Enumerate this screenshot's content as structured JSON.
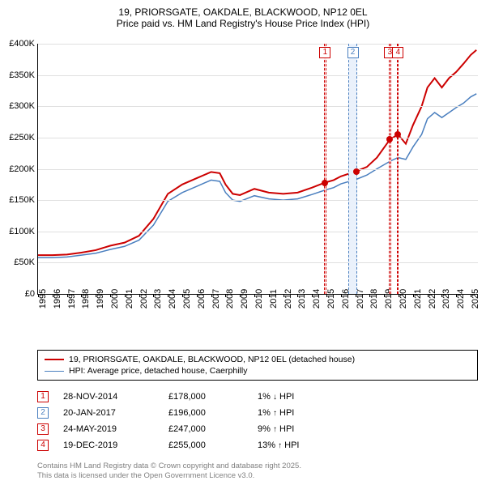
{
  "title": {
    "line1": "19, PRIORSGATE, OAKDALE, BLACKWOOD, NP12 0EL",
    "line2": "Price paid vs. HM Land Registry's House Price Index (HPI)"
  },
  "chart": {
    "type": "line",
    "background_color": "#ffffff",
    "grid_color": "#e0e0e0",
    "xlim": [
      1995,
      2025.5
    ],
    "ylim": [
      0,
      400000
    ],
    "yticks": [
      0,
      50000,
      100000,
      150000,
      200000,
      250000,
      300000,
      350000,
      400000
    ],
    "ytick_labels": [
      "£0",
      "£50K",
      "£100K",
      "£150K",
      "£200K",
      "£250K",
      "£300K",
      "£350K",
      "£400K"
    ],
    "xticks": [
      1995,
      1996,
      1997,
      1998,
      1999,
      2000,
      2001,
      2002,
      2003,
      2004,
      2005,
      2006,
      2007,
      2008,
      2009,
      2010,
      2011,
      2012,
      2013,
      2014,
      2015,
      2016,
      2017,
      2018,
      2019,
      2020,
      2021,
      2022,
      2023,
      2024,
      2025
    ],
    "axis_fontsize": 11,
    "series": [
      {
        "name": "property",
        "color": "#cc0000",
        "width": 2,
        "points": [
          [
            1995,
            62000
          ],
          [
            1996,
            62000
          ],
          [
            1997,
            63000
          ],
          [
            1998,
            66000
          ],
          [
            1999,
            70000
          ],
          [
            2000,
            77000
          ],
          [
            2001,
            82000
          ],
          [
            2002,
            93000
          ],
          [
            2003,
            120000
          ],
          [
            2004,
            160000
          ],
          [
            2005,
            175000
          ],
          [
            2006,
            185000
          ],
          [
            2007,
            195000
          ],
          [
            2007.6,
            193000
          ],
          [
            2008,
            175000
          ],
          [
            2008.5,
            160000
          ],
          [
            2009,
            158000
          ],
          [
            2010,
            168000
          ],
          [
            2011,
            162000
          ],
          [
            2012,
            160000
          ],
          [
            2013,
            162000
          ],
          [
            2014,
            170000
          ],
          [
            2014.9,
            178000
          ],
          [
            2015.5,
            182000
          ],
          [
            2016,
            188000
          ],
          [
            2017.05,
            196000
          ],
          [
            2017.8,
            203000
          ],
          [
            2018.5,
            218000
          ],
          [
            2019.4,
            247000
          ],
          [
            2019.96,
            255000
          ],
          [
            2020.5,
            240000
          ],
          [
            2021,
            270000
          ],
          [
            2021.6,
            300000
          ],
          [
            2022,
            330000
          ],
          [
            2022.5,
            345000
          ],
          [
            2023,
            330000
          ],
          [
            2023.5,
            345000
          ],
          [
            2024,
            355000
          ],
          [
            2024.5,
            368000
          ],
          [
            2025,
            382000
          ],
          [
            2025.4,
            390000
          ]
        ]
      },
      {
        "name": "hpi",
        "color": "#4a7fbf",
        "width": 1.5,
        "points": [
          [
            1995,
            58000
          ],
          [
            1996,
            58000
          ],
          [
            1997,
            59000
          ],
          [
            1998,
            62000
          ],
          [
            1999,
            65000
          ],
          [
            2000,
            71000
          ],
          [
            2001,
            76000
          ],
          [
            2002,
            86000
          ],
          [
            2003,
            110000
          ],
          [
            2004,
            148000
          ],
          [
            2005,
            162000
          ],
          [
            2006,
            172000
          ],
          [
            2007,
            182000
          ],
          [
            2007.6,
            180000
          ],
          [
            2008,
            162000
          ],
          [
            2008.5,
            150000
          ],
          [
            2009,
            148000
          ],
          [
            2010,
            157000
          ],
          [
            2011,
            152000
          ],
          [
            2012,
            150000
          ],
          [
            2013,
            152000
          ],
          [
            2014,
            159000
          ],
          [
            2014.9,
            166000
          ],
          [
            2015.5,
            170000
          ],
          [
            2016,
            176000
          ],
          [
            2017.05,
            183000
          ],
          [
            2017.8,
            190000
          ],
          [
            2018.5,
            200000
          ],
          [
            2019.4,
            212000
          ],
          [
            2019.96,
            218000
          ],
          [
            2020.5,
            215000
          ],
          [
            2021,
            235000
          ],
          [
            2021.6,
            255000
          ],
          [
            2022,
            280000
          ],
          [
            2022.5,
            290000
          ],
          [
            2023,
            282000
          ],
          [
            2023.5,
            290000
          ],
          [
            2024,
            298000
          ],
          [
            2024.5,
            305000
          ],
          [
            2025,
            315000
          ],
          [
            2025.4,
            320000
          ]
        ]
      }
    ],
    "sale_markers": [
      {
        "x": 2014.91,
        "y": 178000,
        "color": "#cc0000"
      },
      {
        "x": 2017.05,
        "y": 196000,
        "color": "#cc0000"
      },
      {
        "x": 2019.4,
        "y": 247000,
        "color": "#cc0000"
      },
      {
        "x": 2019.96,
        "y": 255000,
        "color": "#cc0000"
      }
    ],
    "bands": [
      {
        "label": "1",
        "x_start": 2014.85,
        "x_end": 2014.97,
        "fill": "#fdeaea",
        "border_color": "#cc0000"
      },
      {
        "label": "2",
        "x_start": 2016.5,
        "x_end": 2017.15,
        "fill": "#eaf1fb",
        "border_color": "#4a7fbf"
      },
      {
        "label": "3",
        "x_start": 2019.33,
        "x_end": 2019.47,
        "fill": "#fdeaea",
        "border_color": "#cc0000"
      },
      {
        "label": "4",
        "x_start": 2019.9,
        "x_end": 2020.02,
        "fill": "#fdeaea",
        "border_color": "#cc0000"
      }
    ]
  },
  "legend": {
    "items": [
      {
        "color": "#cc0000",
        "width": 2,
        "label": "19, PRIORSGATE, OAKDALE, BLACKWOOD, NP12 0EL (detached house)"
      },
      {
        "color": "#4a7fbf",
        "width": 1.5,
        "label": "HPI: Average price, detached house, Caerphilly"
      }
    ]
  },
  "sales": [
    {
      "n": "1",
      "color": "#cc0000",
      "date": "28-NOV-2014",
      "price": "£178,000",
      "diff": "1%",
      "arrow": "↓",
      "suffix": "HPI"
    },
    {
      "n": "2",
      "color": "#4a7fbf",
      "date": "20-JAN-2017",
      "price": "£196,000",
      "diff": "1%",
      "arrow": "↑",
      "suffix": "HPI"
    },
    {
      "n": "3",
      "color": "#cc0000",
      "date": "24-MAY-2019",
      "price": "£247,000",
      "diff": "9%",
      "arrow": "↑",
      "suffix": "HPI"
    },
    {
      "n": "4",
      "color": "#cc0000",
      "date": "19-DEC-2019",
      "price": "£255,000",
      "diff": "13%",
      "arrow": "↑",
      "suffix": "HPI"
    }
  ],
  "footer": {
    "line1": "Contains HM Land Registry data © Crown copyright and database right 2025.",
    "line2": "This data is licensed under the Open Government Licence v3.0."
  }
}
